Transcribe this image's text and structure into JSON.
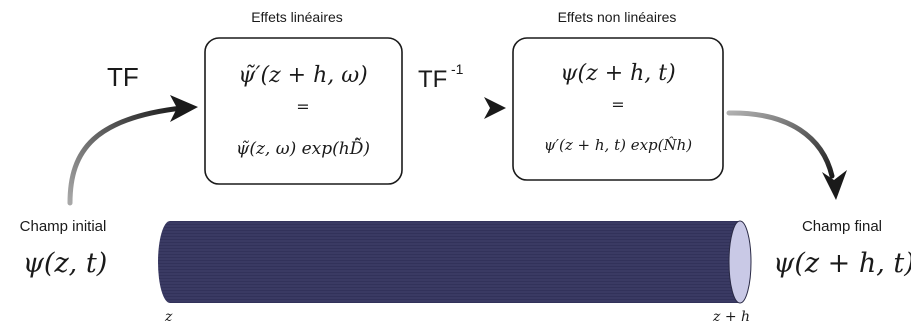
{
  "header_linear": "Effets linéaires",
  "header_nonlinear": "Effets non linéaires",
  "tf_label": "TF",
  "tf_inv_label": "TF",
  "tf_inv_superscript": "-1",
  "box_linear": {
    "top": "ψ̃′(z + h, ω)",
    "eq": "=",
    "bottom": "ψ̃(z, ω) exp(hD̂̃)"
  },
  "box_nonlinear": {
    "top": "ψ(z + h, t)",
    "eq": "=",
    "bottom": "ψ′(z + h, t) exp(N̂h)"
  },
  "initial_label": "Champ initial",
  "initial_formula": "ψ(z, t)",
  "final_label": "Champ final",
  "final_formula": "ψ(z + h, t)",
  "fiber_start": "z",
  "fiber_end": "z + h",
  "colors": {
    "fiber_body": "#3a3a63",
    "fiber_end_face": "#c9c9e6",
    "arrow_dark": "#1a1a1a",
    "arrow_light": "#9a9a9a"
  }
}
